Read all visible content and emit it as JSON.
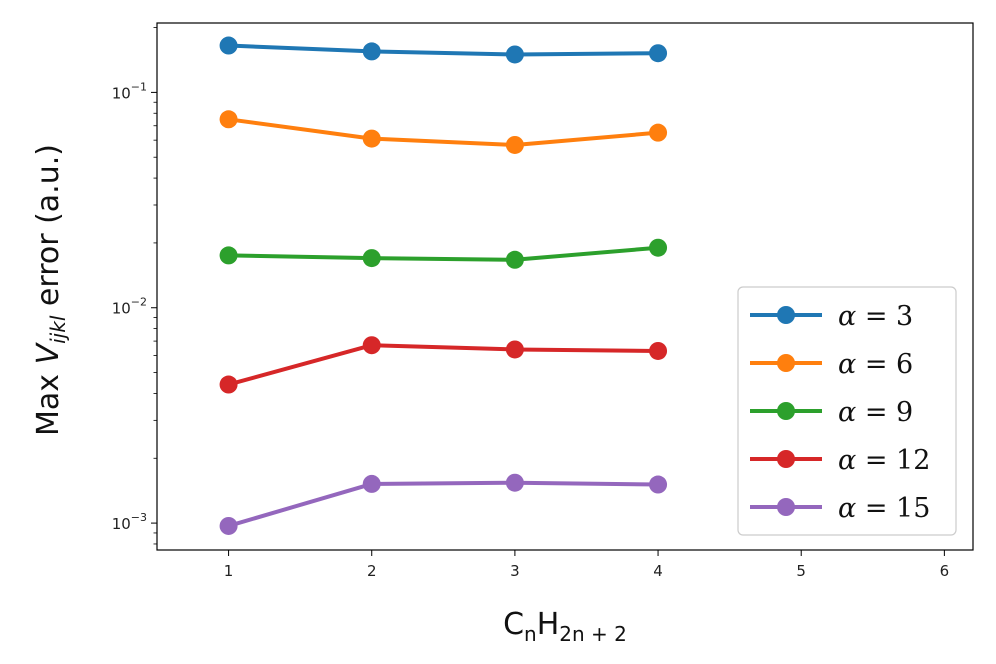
{
  "chart_data": {
    "type": "line",
    "title": "",
    "xlabel": {
      "base": "C",
      "sub1": "n",
      "mid": "H",
      "sub2": "2n + 2"
    },
    "ylabel": {
      "prefix": "Max ",
      "var": "V",
      "sub": "ijkl",
      "suffix": " error (a.u.)"
    },
    "yscale": "log",
    "xlim": [
      0.5,
      6.2
    ],
    "ylim": [
      0.00075,
      0.21
    ],
    "x": [
      1,
      2,
      3,
      4
    ],
    "xticks": [
      1,
      2,
      3,
      4,
      5,
      6
    ],
    "xtick_labels": [
      "1",
      "2",
      "3",
      "4",
      "5",
      "6"
    ],
    "yticks": [
      {
        "value": 0.1,
        "base": "10",
        "exp": "−1"
      },
      {
        "value": 0.01,
        "base": "10",
        "exp": "−2"
      },
      {
        "value": 0.001,
        "base": "10",
        "exp": "−3"
      }
    ],
    "grid": false,
    "legend_position": "lower-right",
    "series": [
      {
        "name": "α = 3",
        "legend_prefix": "α",
        "legend_value": "= 3",
        "color": "#1f77b4",
        "values": [
          0.165,
          0.155,
          0.15,
          0.152
        ]
      },
      {
        "name": "α = 6",
        "legend_prefix": "α",
        "legend_value": "= 6",
        "color": "#ff7f0e",
        "values": [
          0.075,
          0.061,
          0.057,
          0.065
        ]
      },
      {
        "name": "α = 9",
        "legend_prefix": "α",
        "legend_value": "= 9",
        "color": "#2ca02c",
        "values": [
          0.0175,
          0.017,
          0.0167,
          0.019
        ]
      },
      {
        "name": "α = 12",
        "legend_prefix": "α",
        "legend_value": "= 12",
        "color": "#d62728",
        "values": [
          0.0044,
          0.0067,
          0.0064,
          0.0063
        ]
      },
      {
        "name": "α = 15",
        "legend_prefix": "α",
        "legend_value": "= 15",
        "color": "#9467bd",
        "values": [
          0.00097,
          0.00152,
          0.00154,
          0.00151
        ]
      }
    ]
  }
}
